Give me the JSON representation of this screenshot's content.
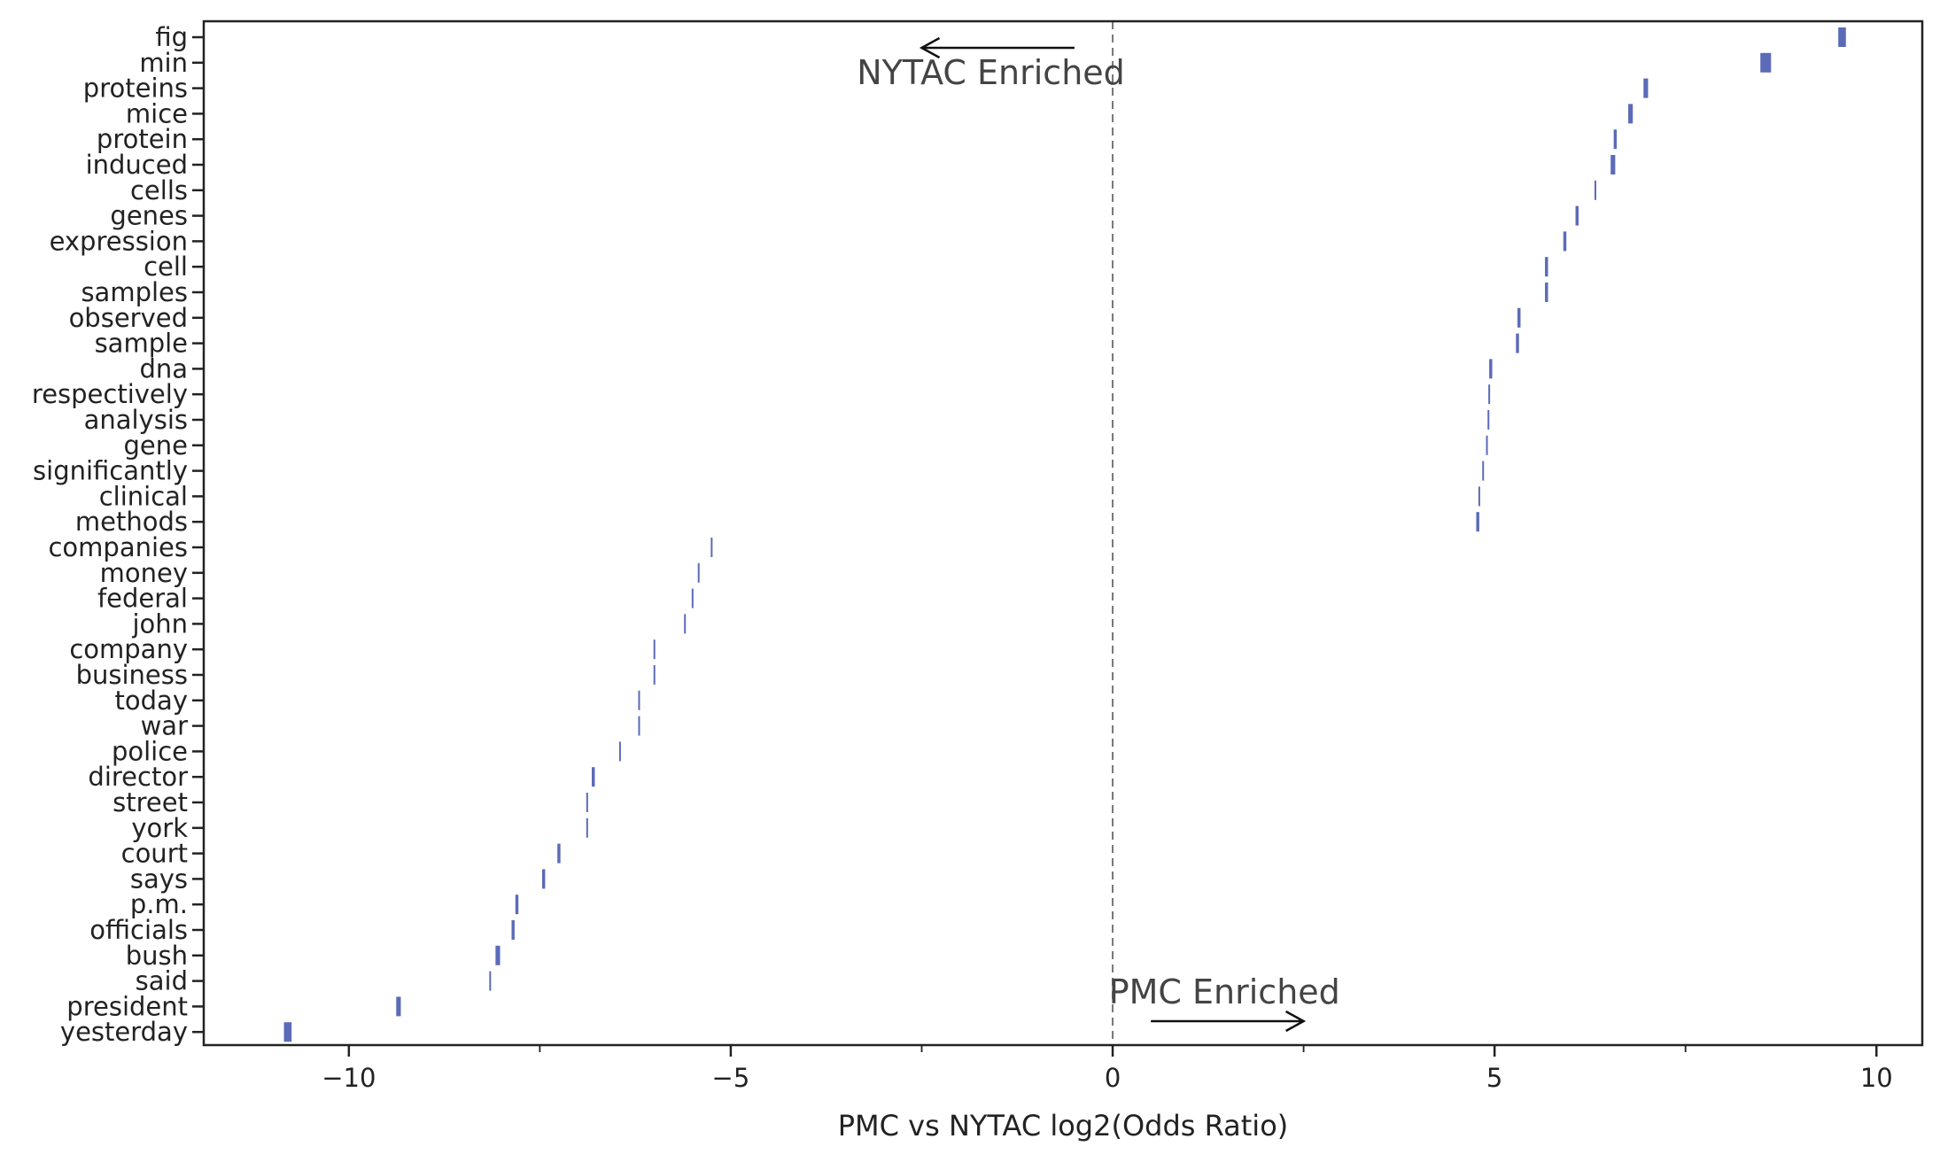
{
  "chart_data": {
    "type": "scatter",
    "xlabel": "PMC vs NYTAC log2(Odds Ratio)",
    "ylabel": "",
    "xlim": [
      -11.9,
      10.6
    ],
    "xticks": [
      -10,
      -5,
      0,
      5,
      10
    ],
    "xtick_labels": [
      "−10",
      "−5",
      "0",
      "5",
      "10"
    ],
    "x_minor_ticks": [
      -7.5,
      -2.5,
      2.5,
      7.5
    ],
    "reference_line_x": 0,
    "grid": false,
    "marker_color": "#5b6bb8",
    "categories": [
      "fig",
      "min",
      "proteins",
      "mice",
      "protein",
      "induced",
      "cells",
      "genes",
      "expression",
      "cell",
      "samples",
      "observed",
      "sample",
      "dna",
      "respectively",
      "analysis",
      "gene",
      "significantly",
      "clinical",
      "methods",
      "companies",
      "money",
      "federal",
      "john",
      "company",
      "business",
      "today",
      "war",
      "police",
      "director",
      "street",
      "york",
      "court",
      "says",
      "p.m.",
      "officials",
      "bush",
      "said",
      "president",
      "yesterday"
    ],
    "x": [
      9.55,
      8.55,
      6.98,
      6.78,
      6.58,
      6.55,
      6.32,
      6.08,
      5.92,
      5.68,
      5.68,
      5.32,
      5.3,
      4.95,
      4.93,
      4.92,
      4.9,
      4.85,
      4.8,
      4.78,
      -5.25,
      -5.42,
      -5.5,
      -5.6,
      -6.0,
      -6.0,
      -6.2,
      -6.2,
      -6.45,
      -6.8,
      -6.88,
      -6.88,
      -7.25,
      -7.45,
      -7.8,
      -7.85,
      -8.05,
      -8.15,
      -9.35,
      -10.8
    ],
    "x_err": [
      0.05,
      0.07,
      0.03,
      0.03,
      0.02,
      0.03,
      0.01,
      0.02,
      0.02,
      0.02,
      0.02,
      0.02,
      0.02,
      0.02,
      0.01,
      0.01,
      0.01,
      0.01,
      0.01,
      0.02,
      0.01,
      0.01,
      0.01,
      0.01,
      0.01,
      0.01,
      0.005,
      0.01,
      0.01,
      0.02,
      0.01,
      0.005,
      0.02,
      0.02,
      0.02,
      0.02,
      0.03,
      0.005,
      0.03,
      0.05
    ],
    "annotations": [
      {
        "text": "NYTAC Enriched",
        "direction": "left",
        "arrow_from": -0.5,
        "arrow_to": -2.5
      },
      {
        "text": "PMC Enriched",
        "direction": "right",
        "arrow_from": 0.5,
        "arrow_to": 2.5
      }
    ]
  }
}
